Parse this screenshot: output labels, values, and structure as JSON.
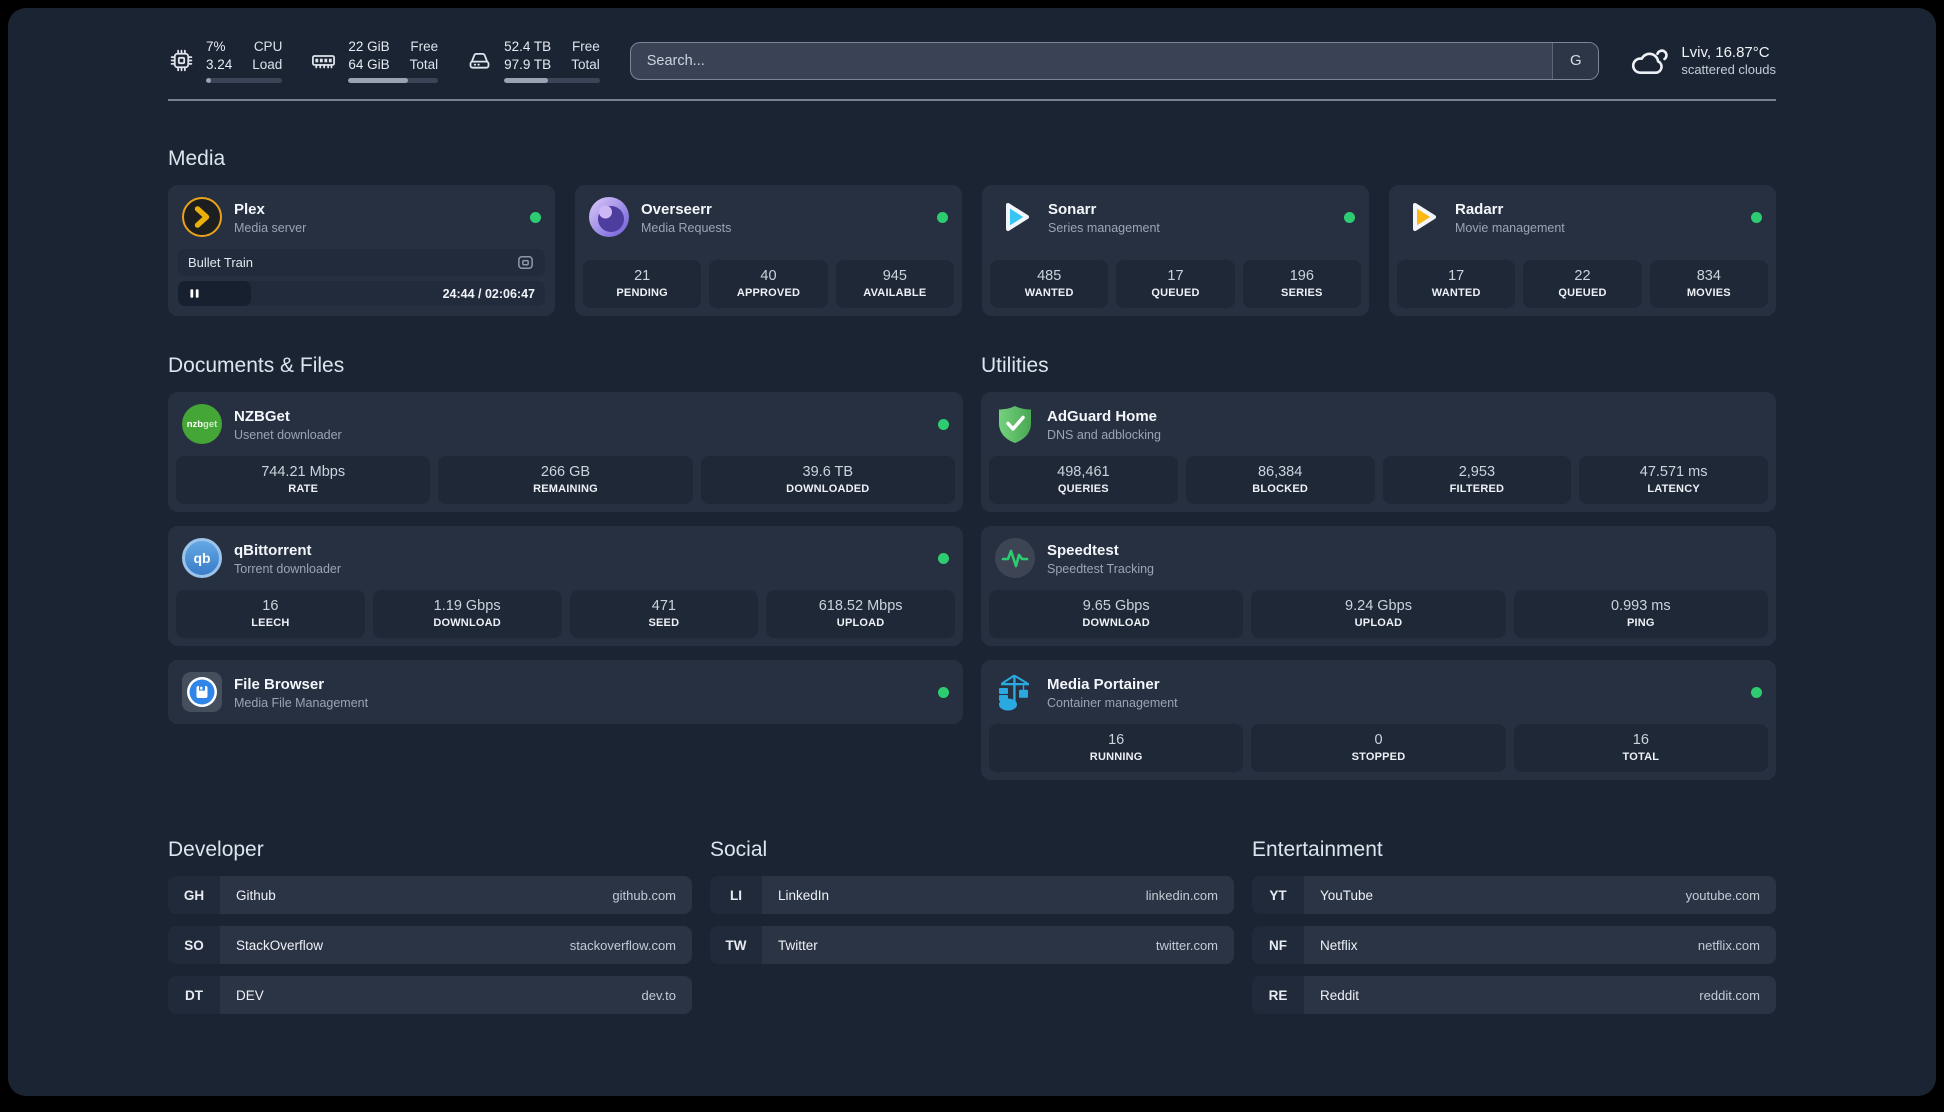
{
  "topbar": {
    "resources": [
      {
        "icon": "cpu-icon",
        "values": [
          "7%",
          "3.24"
        ],
        "labels": [
          "CPU",
          "Load"
        ],
        "progress_pct": 7
      },
      {
        "icon": "memory-icon",
        "values": [
          "22 GiB",
          "64 GiB"
        ],
        "labels": [
          "Free",
          "Total"
        ],
        "progress_pct": 66
      },
      {
        "icon": "disk-icon",
        "values": [
          "52.4 TB",
          "97.9 TB"
        ],
        "labels": [
          "Free",
          "Total"
        ],
        "progress_pct": 46
      }
    ],
    "search": {
      "placeholder": "Search...",
      "provider_button": "G"
    },
    "weather": {
      "icon": "cloud-icon",
      "location_temp": "Lviv, 16.87°C",
      "condition": "scattered clouds"
    }
  },
  "media": {
    "title": "Media",
    "plex": {
      "name": "Plex",
      "subtitle": "Media server",
      "icon": "plex-icon",
      "status": "online",
      "now_playing": {
        "title": "Bullet Train",
        "time": "24:44 / 02:06:47",
        "progress_pct": 20
      }
    },
    "overseerr": {
      "name": "Overseerr",
      "subtitle": "Media Requests",
      "icon": "overseerr-icon",
      "status": "online",
      "stats": [
        {
          "value": "21",
          "label": "PENDING"
        },
        {
          "value": "40",
          "label": "APPROVED"
        },
        {
          "value": "945",
          "label": "AVAILABLE"
        }
      ]
    },
    "sonarr": {
      "name": "Sonarr",
      "subtitle": "Series management",
      "icon": "sonarr-icon",
      "status": "online",
      "stats": [
        {
          "value": "485",
          "label": "WANTED"
        },
        {
          "value": "17",
          "label": "QUEUED"
        },
        {
          "value": "196",
          "label": "SERIES"
        }
      ]
    },
    "radarr": {
      "name": "Radarr",
      "subtitle": "Movie management",
      "icon": "radarr-icon",
      "status": "online",
      "stats": [
        {
          "value": "17",
          "label": "WANTED"
        },
        {
          "value": "22",
          "label": "QUEUED"
        },
        {
          "value": "834",
          "label": "MOVIES"
        }
      ]
    }
  },
  "documents": {
    "title": "Documents & Files",
    "nzbget": {
      "name": "NZBGet",
      "subtitle": "Usenet downloader",
      "icon": "nzbget-icon",
      "icon_text": "nzbget",
      "status": "online",
      "stats": [
        {
          "value": "744.21 Mbps",
          "label": "RATE"
        },
        {
          "value": "266 GB",
          "label": "REMAINING"
        },
        {
          "value": "39.6 TB",
          "label": "DOWNLOADED"
        }
      ]
    },
    "qbittorrent": {
      "name": "qBittorrent",
      "subtitle": "Torrent downloader",
      "icon": "qbittorrent-icon",
      "icon_text": "qb",
      "status": "online",
      "stats": [
        {
          "value": "16",
          "label": "LEECH"
        },
        {
          "value": "1.19 Gbps",
          "label": "DOWNLOAD"
        },
        {
          "value": "471",
          "label": "SEED"
        },
        {
          "value": "618.52 Mbps",
          "label": "UPLOAD"
        }
      ]
    },
    "filebrowser": {
      "name": "File Browser",
      "subtitle": "Media File Management",
      "icon": "filebrowser-icon",
      "status": "online"
    }
  },
  "utilities": {
    "title": "Utilities",
    "adguard": {
      "name": "AdGuard Home",
      "subtitle": "DNS and adblocking",
      "icon": "adguard-icon",
      "stats": [
        {
          "value": "498,461",
          "label": "QUERIES"
        },
        {
          "value": "86,384",
          "label": "BLOCKED"
        },
        {
          "value": "2,953",
          "label": "FILTERED"
        },
        {
          "value": "47.571 ms",
          "label": "LATENCY"
        }
      ]
    },
    "speedtest": {
      "name": "Speedtest",
      "subtitle": "Speedtest Tracking",
      "icon": "speedtest-icon",
      "stats": [
        {
          "value": "9.65 Gbps",
          "label": "DOWNLOAD"
        },
        {
          "value": "9.24 Gbps",
          "label": "UPLOAD"
        },
        {
          "value": "0.993 ms",
          "label": "PING"
        }
      ]
    },
    "portainer": {
      "name": "Media Portainer",
      "subtitle": "Container management",
      "icon": "portainer-icon",
      "status": "online",
      "stats": [
        {
          "value": "16",
          "label": "RUNNING"
        },
        {
          "value": "0",
          "label": "STOPPED"
        },
        {
          "value": "16",
          "label": "TOTAL"
        }
      ]
    }
  },
  "bookmarks": [
    {
      "title": "Developer",
      "links": [
        {
          "abbr": "GH",
          "name": "Github",
          "url": "github.com"
        },
        {
          "abbr": "SO",
          "name": "StackOverflow",
          "url": "stackoverflow.com"
        },
        {
          "abbr": "DT",
          "name": "DEV",
          "url": "dev.to"
        }
      ]
    },
    {
      "title": "Social",
      "links": [
        {
          "abbr": "LI",
          "name": "LinkedIn",
          "url": "linkedin.com"
        },
        {
          "abbr": "TW",
          "name": "Twitter",
          "url": "twitter.com"
        }
      ]
    },
    {
      "title": "Entertainment",
      "links": [
        {
          "abbr": "YT",
          "name": "YouTube",
          "url": "youtube.com"
        },
        {
          "abbr": "NF",
          "name": "Netflix",
          "url": "netflix.com"
        },
        {
          "abbr": "RE",
          "name": "Reddit",
          "url": "reddit.com"
        }
      ]
    }
  ],
  "colors": {
    "status_online": "#2ECC71",
    "page_bg": "#1b2433",
    "card_bg": "#273040",
    "stat_bg": "#1f2837",
    "accent_plex": "#E8A21B",
    "accent_sonarr": "#36C6F4",
    "accent_radarr": "#FDB814",
    "accent_adguard": "#5FBE68",
    "accent_portainer": "#2AA9E0"
  }
}
